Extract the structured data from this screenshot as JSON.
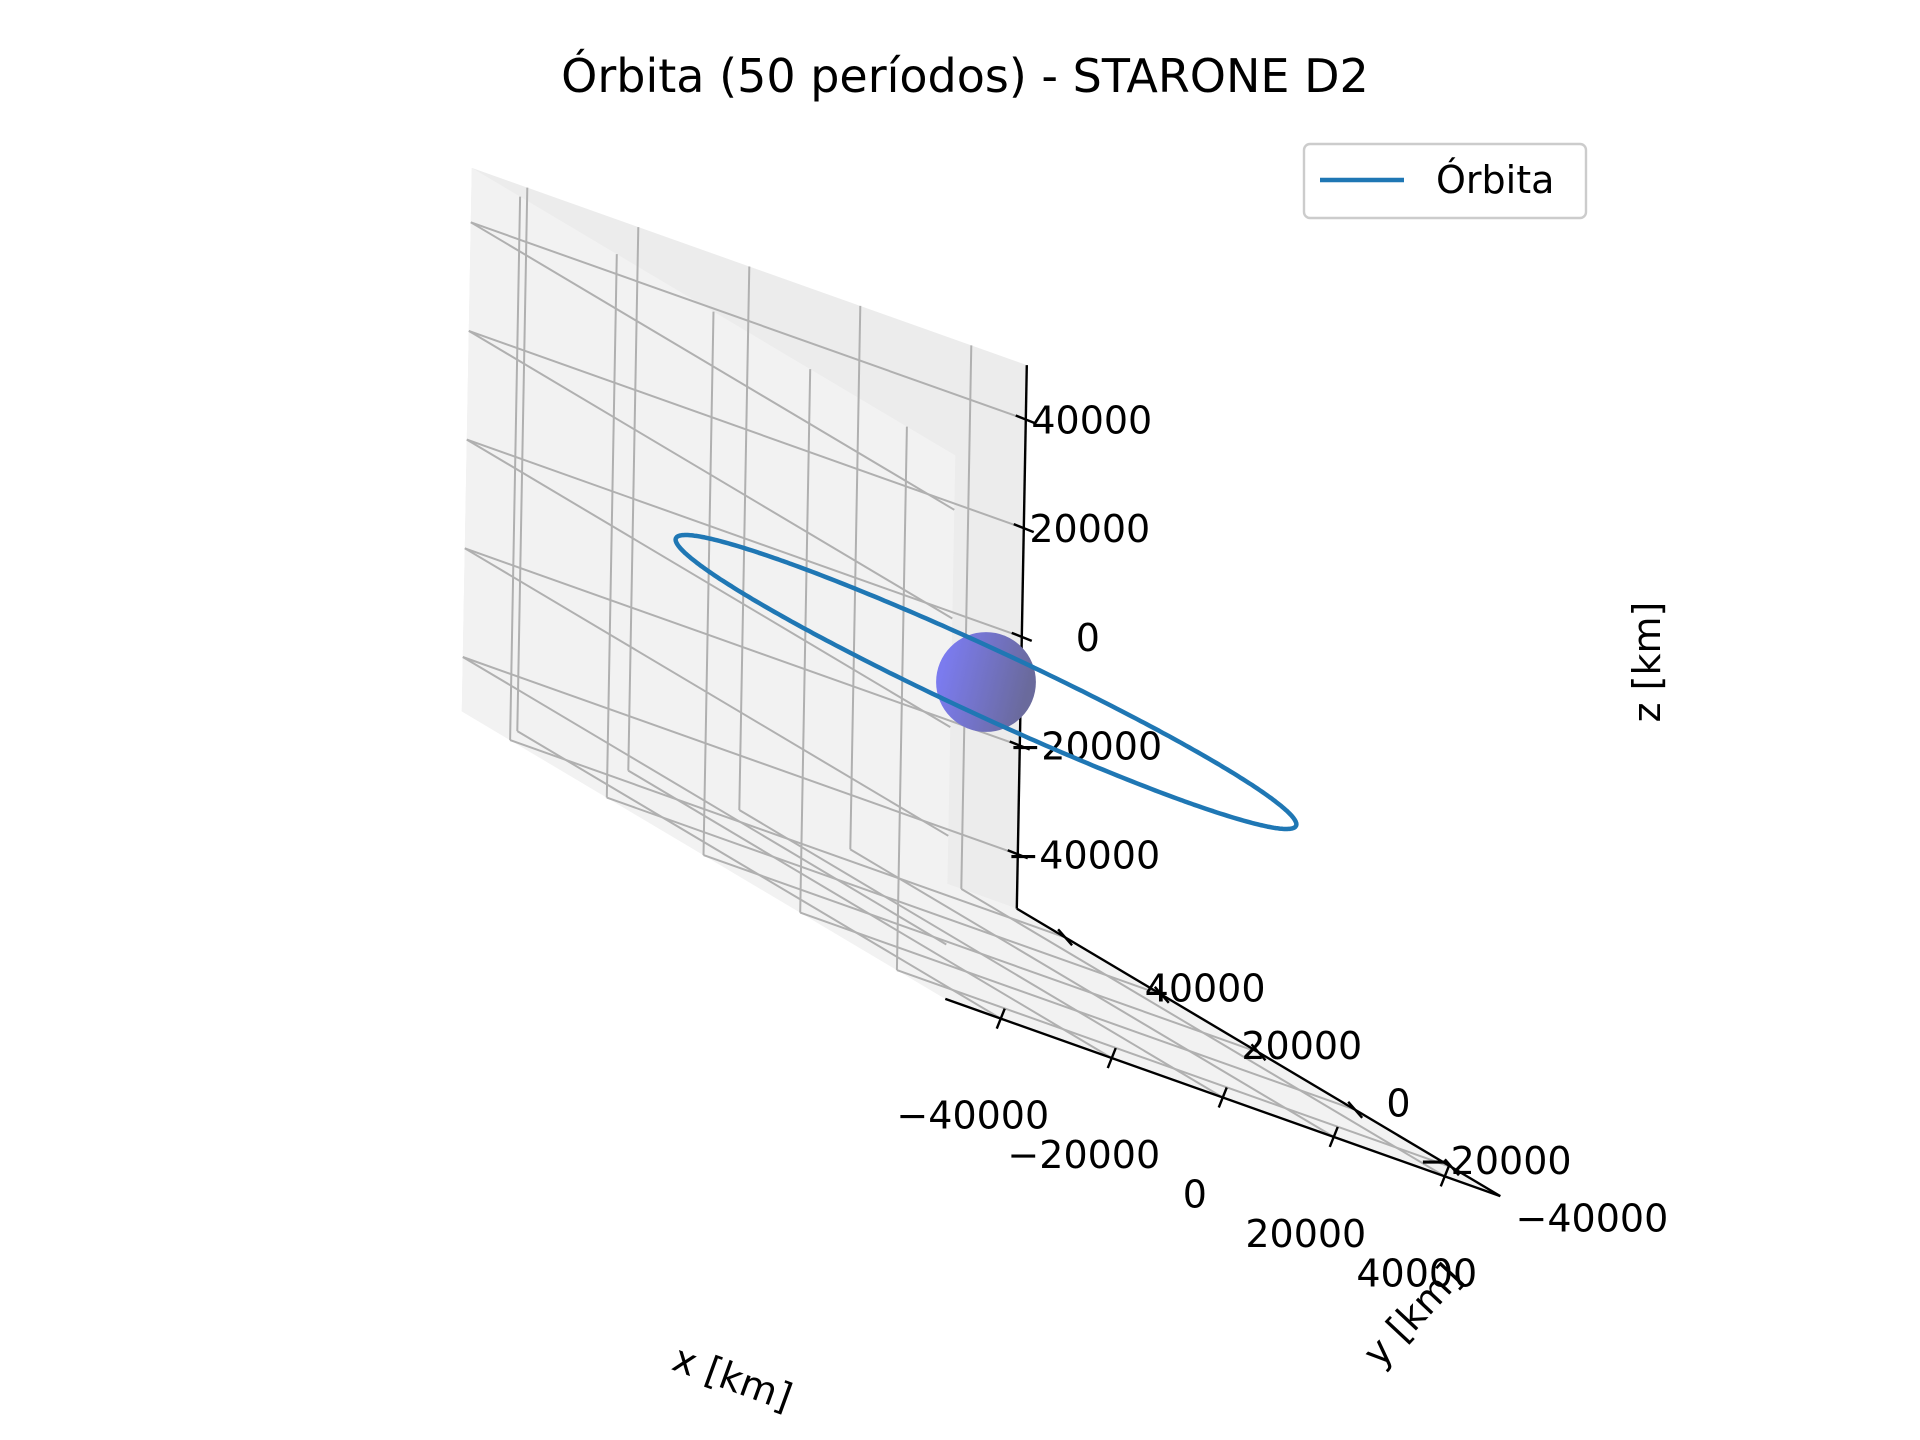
{
  "chart_data": {
    "type": "line",
    "projection": "3d",
    "title": "Órbita (50 períodos) - STARONE D2",
    "xlabel": "x [km]",
    "ylabel": "y [km]",
    "zlabel": "z [km]",
    "xlim": [
      -50000,
      50000
    ],
    "ylim": [
      -50000,
      50000
    ],
    "zlim": [
      -50000,
      50000
    ],
    "xticks": [
      -40000,
      -20000,
      0,
      20000,
      40000
    ],
    "yticks": [
      -40000,
      -20000,
      0,
      20000,
      40000
    ],
    "zticks": [
      -40000,
      -20000,
      0,
      20000,
      40000
    ],
    "xtick_labels": [
      "−40000",
      "−20000",
      "0",
      "20000",
      "40000"
    ],
    "ytick_labels": [
      "−40000",
      "−20000",
      "0",
      "20000",
      "40000"
    ],
    "ztick_labels": [
      "−40000",
      "−20000",
      "0",
      "20000",
      "40000"
    ],
    "grid": true,
    "legend_position": "top-right",
    "series": [
      {
        "name": "Órbita",
        "color": "#1f77b4",
        "shape": "circle",
        "radius_km": 42164,
        "z_km": 0,
        "periods": 50
      }
    ],
    "body": {
      "shape": "sphere",
      "radius_km": 6371,
      "color": "#7b7bee",
      "shade_color": "#6a6a9c"
    },
    "pane_color": "#f2f2f2",
    "grid_color": "#b0b0b0"
  }
}
